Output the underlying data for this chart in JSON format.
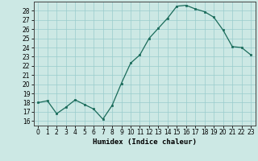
{
  "x": [
    0,
    1,
    2,
    3,
    4,
    5,
    6,
    7,
    8,
    9,
    10,
    11,
    12,
    13,
    14,
    15,
    16,
    17,
    18,
    19,
    20,
    21,
    22,
    23
  ],
  "y": [
    18.0,
    18.2,
    16.8,
    17.5,
    18.3,
    17.8,
    17.3,
    16.2,
    17.7,
    20.1,
    22.3,
    23.2,
    25.0,
    26.1,
    27.2,
    28.5,
    28.6,
    28.2,
    27.9,
    27.3,
    25.9,
    24.1,
    24.0,
    23.2
  ],
  "xlabel": "Humidex (Indice chaleur)",
  "xlim": [
    -0.5,
    23.5
  ],
  "ylim": [
    15.5,
    29.0
  ],
  "yticks": [
    16,
    17,
    18,
    19,
    20,
    21,
    22,
    23,
    24,
    25,
    26,
    27,
    28
  ],
  "xticks": [
    0,
    1,
    2,
    3,
    4,
    5,
    6,
    7,
    8,
    9,
    10,
    11,
    12,
    13,
    14,
    15,
    16,
    17,
    18,
    19,
    20,
    21,
    22,
    23
  ],
  "line_color": "#1a6b5a",
  "marker_color": "#1a6b5a",
  "bg_color": "#cce8e4",
  "grid_color": "#99cccc",
  "xlabel_fontsize": 6.5,
  "tick_fontsize": 5.5
}
